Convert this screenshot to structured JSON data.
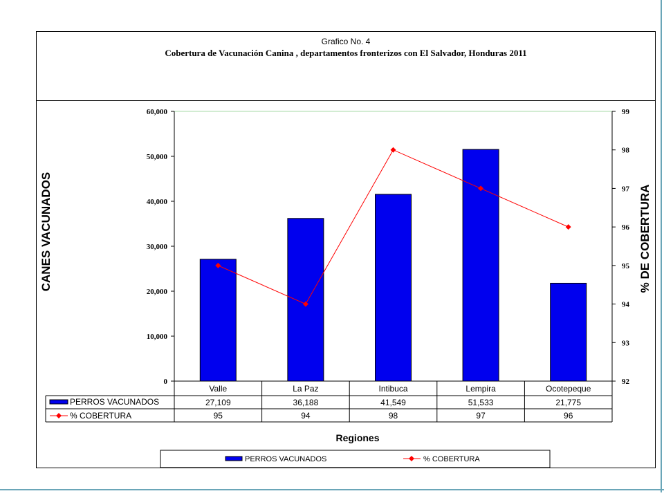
{
  "chart_data": {
    "type": "bar",
    "title": "Grafico No. 4",
    "subtitle": "Cobertura de Vacunación Canina , departamentos fronterizos con El Salvador, Honduras 2011",
    "categories": [
      "Valle",
      "La Paz",
      "Intibuca",
      "Lempira",
      "Ocotepeque"
    ],
    "series": [
      {
        "name": "PERROS VACUNADOS",
        "type": "bar",
        "axis": "left",
        "color": "#0000ee",
        "values": [
          27109,
          36188,
          41549,
          51533,
          21775
        ],
        "labels": [
          "27,109",
          "36,188",
          "41,549",
          "51,533",
          "21,775"
        ]
      },
      {
        "name": "% COBERTURA",
        "type": "line",
        "axis": "right",
        "color": "#ff0000",
        "values": [
          95,
          94,
          98,
          97,
          96
        ],
        "labels": [
          "95",
          "94",
          "98",
          "97",
          "96"
        ]
      }
    ],
    "ylabel": "CANES VACUNADOS",
    "y2label": "% DE COBERTURA",
    "xlabel": "Regiones",
    "ylim": [
      0,
      60000
    ],
    "y2lim": [
      92,
      99
    ],
    "yticks": [
      "0",
      "10,000",
      "20,000",
      "30,000",
      "40,000",
      "50,000",
      "60,000"
    ],
    "y2ticks": [
      "92",
      "93",
      "94",
      "95",
      "96",
      "97",
      "98",
      "99"
    ],
    "grid": true,
    "legend_placement": "bottom"
  }
}
